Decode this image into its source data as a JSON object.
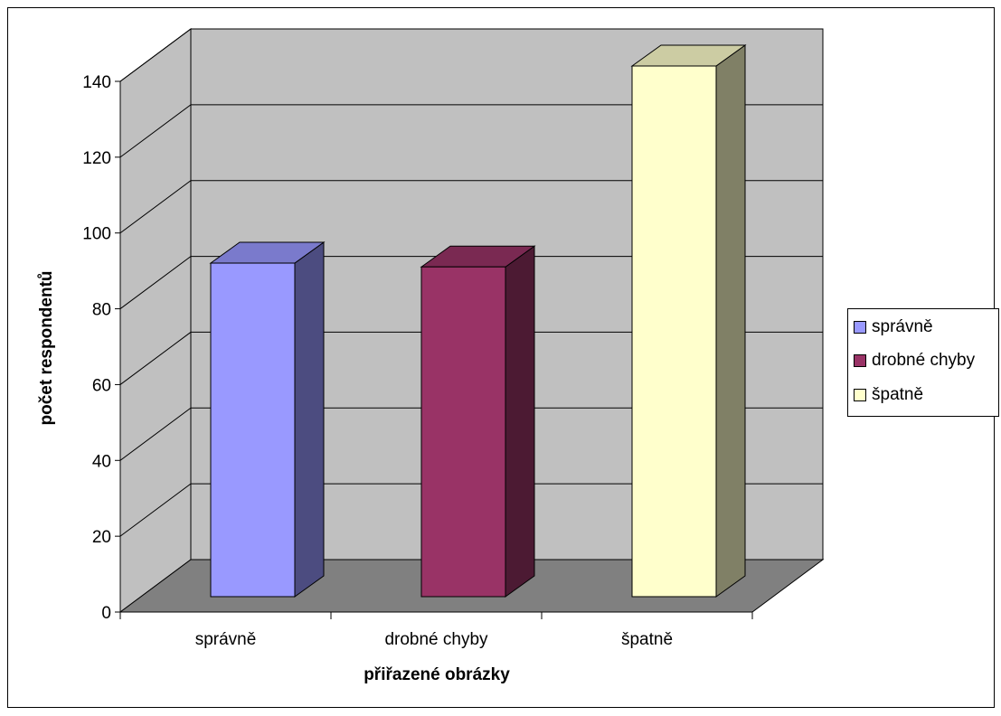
{
  "chart_data": {
    "type": "bar",
    "categories": [
      "správně",
      "drobné chyby",
      "špatně"
    ],
    "values": [
      88,
      87,
      140
    ],
    "colors": [
      "#9999ff",
      "#993366",
      "#ffffcc"
    ],
    "side_colors": [
      "#4c4c80",
      "#4c1a33",
      "#808066"
    ],
    "top_colors": [
      "#7a7acc",
      "#7a2952",
      "#cccca3"
    ],
    "title": "",
    "xlabel": "přiřazené obrázky",
    "ylabel": "počet respondentů",
    "ylim": [
      0,
      140
    ],
    "yticks": [
      "0",
      "20",
      "40",
      "60",
      "80",
      "100",
      "120",
      "140"
    ],
    "grid": true,
    "legend_position": "right",
    "legend": [
      "správně",
      "drobné chyby",
      "špatně"
    ]
  }
}
